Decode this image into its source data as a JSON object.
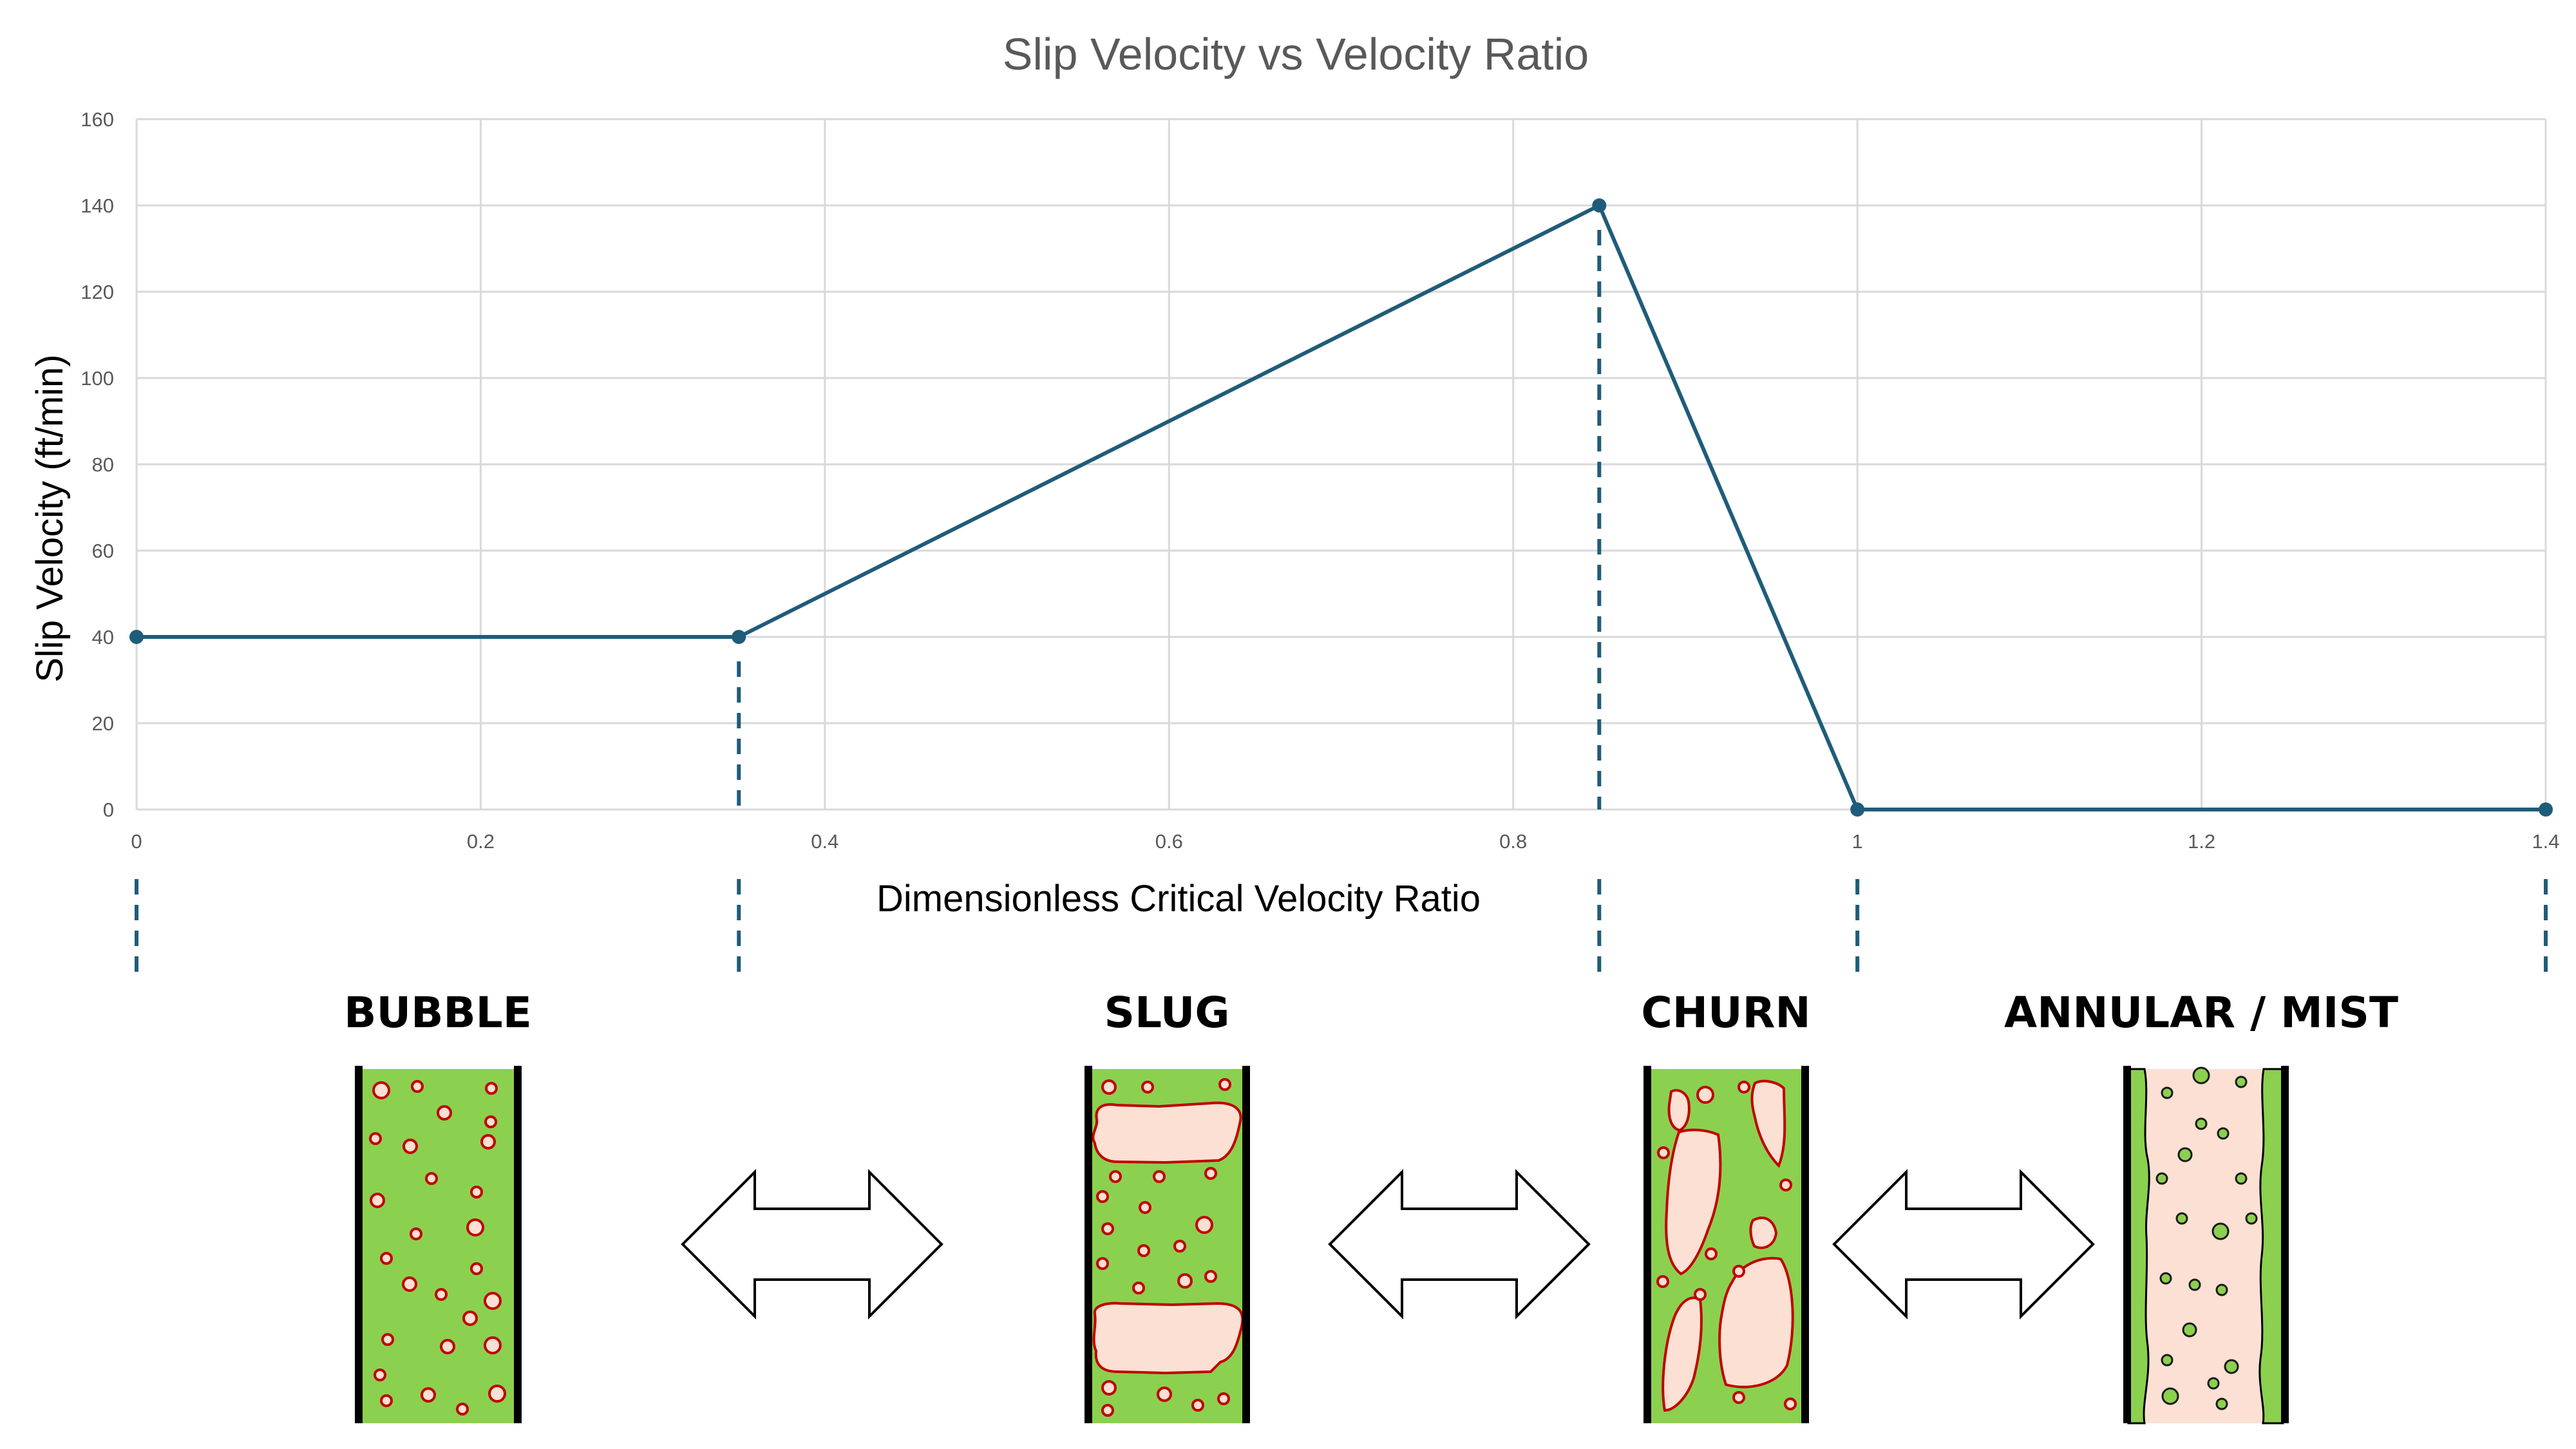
{
  "chart_data": {
    "type": "line",
    "title": "Slip Velocity vs Velocity Ratio",
    "xlabel": "Dimensionless Critical Velocity Ratio",
    "ylabel": "Slip Velocity (ft/min)",
    "xlim": [
      0,
      1.4
    ],
    "ylim": [
      0,
      160
    ],
    "x_ticks": [
      "0",
      "0.2",
      "0.4",
      "0.6",
      "0.8",
      "1",
      "1.2",
      "1.4"
    ],
    "y_ticks": [
      "0",
      "20",
      "40",
      "60",
      "80",
      "100",
      "120",
      "140",
      "160"
    ],
    "grid": true,
    "series": [
      {
        "x": [
          0,
          0.35,
          0.85,
          1.0,
          1.4
        ],
        "y": [
          40,
          40,
          140,
          0,
          0
        ],
        "color": "#1f5c7a"
      }
    ],
    "boundaries": [
      0,
      0.35,
      0.85,
      1.0,
      1.4
    ],
    "regimes": [
      "BUBBLE",
      "SLUG",
      "CHURN",
      "ANNULAR / MIST"
    ],
    "colors": {
      "line": "#1f5c7a",
      "liquid": "#8cd04f",
      "gas": "#fce0d3",
      "gas_outline": "#c00000"
    }
  }
}
